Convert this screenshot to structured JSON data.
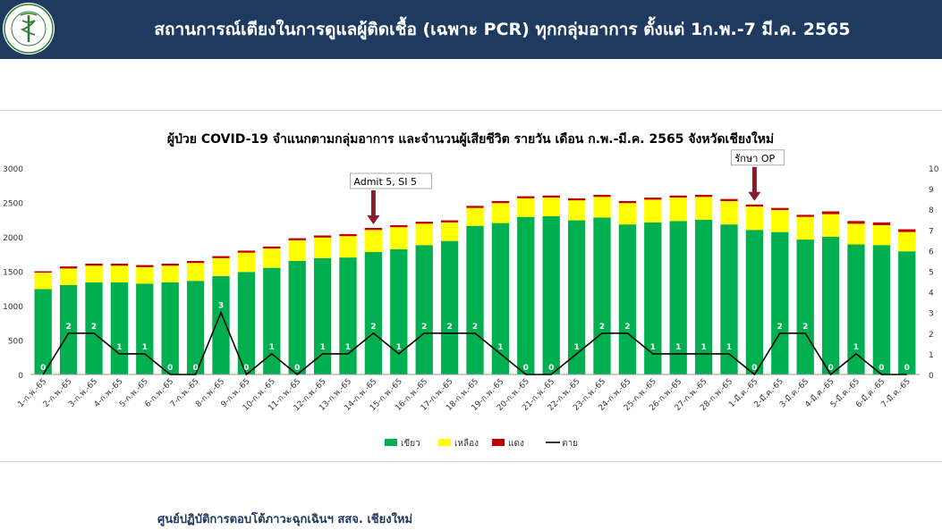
{
  "header": {
    "title": "สถานการณ์เตียงในการดูแลผู้ติดเชื้อ (เฉพาะ PCR) ทุกกลุ่มอาการ ตั้งแต่ 1ก.พ.-7 มี.ค. 2565",
    "logo_icon": "moph-seal-icon",
    "logo_text": "กระทรวงสาธารณสุข MINISTRY OF PUBLIC HEALTH"
  },
  "footer": {
    "text": "ศูนย์ปฏิบัติการตอบโต้ภาวะฉุกเฉินฯ สสจ. เชียงใหม่"
  },
  "colors": {
    "header_bg": "#1e3a5f",
    "green": "#00b050",
    "yellow": "#ffff00",
    "red": "#c00000",
    "line": "#000000",
    "arrow": "#8b1a2b"
  },
  "chart_data": {
    "type": "bar",
    "title": "ผู้ป่วย COVID-19 จำแนกตามกลุ่มอาการ และจำนวนผู้เสียชีวิต รายวัน เดือน ก.พ.-มี.ค. 2565 จังหวัดเชียงใหม่",
    "stacked": true,
    "categories": [
      "1-ก.พ.-65",
      "2-ก.พ.-65",
      "3-ก.พ.-65",
      "4-ก.พ.-65",
      "5-ก.พ.-65",
      "6-ก.พ.-65",
      "7-ก.พ.-65",
      "8-ก.พ.-65",
      "9-ก.พ.-65",
      "10-ก.พ.-65",
      "11-ก.พ.-65",
      "12-ก.พ.-65",
      "13-ก.พ.-65",
      "14-ก.พ.-65",
      "15-ก.พ.-65",
      "16-ก.พ.-65",
      "17-ก.พ.-65",
      "18-ก.พ.-65",
      "19-ก.พ.-65",
      "20-ก.พ.-65",
      "21-ก.พ.-65",
      "22-ก.พ.-65",
      "23-ก.พ.-65",
      "24-ก.พ.-65",
      "25-ก.พ.-65",
      "26-ก.พ.-65",
      "27-ก.พ.-65",
      "28-ก.พ.-65",
      "1-มี.ค.-65",
      "2-มี.ค.-65",
      "3-มี.ค.-65",
      "4-มี.ค.-65",
      "5-มี.ค.-65",
      "6-มี.ค.-65",
      "7-มี.ค.-65"
    ],
    "series": [
      {
        "name": "เขียว",
        "type": "bar",
        "axis": "left",
        "values": [
          1240,
          1300,
          1340,
          1340,
          1320,
          1340,
          1360,
          1430,
          1490,
          1550,
          1650,
          1690,
          1700,
          1780,
          1820,
          1880,
          1940,
          2160,
          2200,
          2290,
          2300,
          2240,
          2280,
          2180,
          2210,
          2230,
          2250,
          2180,
          2100,
          2070,
          1960,
          2000,
          1890,
          1880,
          1790
        ]
      },
      {
        "name": "เหลือง",
        "type": "bar",
        "axis": "left",
        "values": [
          240,
          240,
          240,
          240,
          240,
          240,
          260,
          260,
          280,
          280,
          300,
          300,
          310,
          320,
          320,
          310,
          270,
          260,
          290,
          270,
          270,
          290,
          300,
          310,
          330,
          340,
          330,
          340,
          340,
          320,
          330,
          330,
          300,
          290,
          280
        ]
      },
      {
        "name": "แดง",
        "type": "bar",
        "axis": "left",
        "values": [
          20,
          30,
          30,
          30,
          30,
          30,
          30,
          30,
          30,
          30,
          30,
          30,
          30,
          30,
          30,
          30,
          30,
          30,
          30,
          30,
          30,
          30,
          30,
          30,
          30,
          30,
          30,
          30,
          30,
          30,
          30,
          40,
          40,
          40,
          40
        ]
      },
      {
        "name": "ตาย",
        "type": "line",
        "axis": "right",
        "values": [
          0,
          2,
          2,
          1,
          1,
          0,
          0,
          3,
          0,
          1,
          0,
          1,
          1,
          2,
          1,
          2,
          2,
          2,
          1,
          0,
          0,
          1,
          2,
          2,
          1,
          1,
          1,
          1,
          0,
          2,
          2,
          0,
          1,
          0,
          0
        ]
      }
    ],
    "yaxis_left": {
      "ylim": [
        0,
        3000
      ],
      "ticks": [
        "0",
        "500",
        "1000",
        "1500",
        "2000",
        "2500",
        "3000"
      ]
    },
    "yaxis_right": {
      "ylim": [
        0,
        10
      ],
      "ticks": [
        "0",
        "1",
        "2",
        "3",
        "4",
        "5",
        "6",
        "7",
        "8",
        "9",
        "10"
      ]
    },
    "legend": {
      "position": "bottom",
      "items": [
        "เขียว",
        "เหลือง",
        "แดง",
        "ตาย"
      ]
    },
    "annotations": [
      {
        "text": "Admit 5, SI 5",
        "category": "14-ก.พ.-65"
      },
      {
        "text": "รักษา OP",
        "category": "1-มี.ค.-65"
      }
    ],
    "grid": false
  }
}
